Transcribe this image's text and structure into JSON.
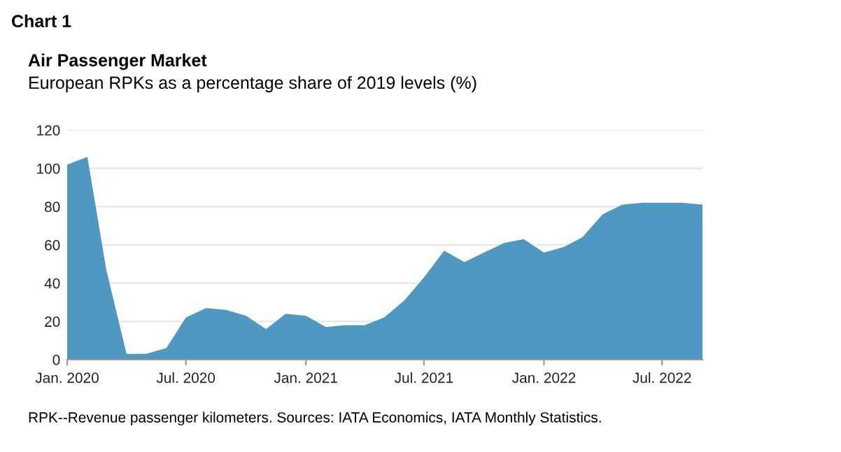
{
  "chart_data": {
    "type": "area",
    "title": "Air Passenger Market",
    "subtitle": "European RPKs as a percentage share of 2019 levels (%)",
    "annotations": [
      "Chart 1",
      "RPK--Revenue passenger kilometers. Sources: IATA Economics, IATA Monthly Statistics."
    ],
    "x": [
      "2020-01",
      "2020-02",
      "2020-03",
      "2020-04",
      "2020-05",
      "2020-06",
      "2020-07",
      "2020-08",
      "2020-09",
      "2020-10",
      "2020-11",
      "2020-12",
      "2021-01",
      "2021-02",
      "2021-03",
      "2021-04",
      "2021-05",
      "2021-06",
      "2021-07",
      "2021-08",
      "2021-09",
      "2021-10",
      "2021-11",
      "2021-12",
      "2022-01",
      "2022-02",
      "2022-03",
      "2022-04",
      "2022-05",
      "2022-06",
      "2022-07",
      "2022-08",
      "2022-09"
    ],
    "series": [
      {
        "color": "#4f98c2",
        "values": [
          102,
          106,
          47,
          3,
          3,
          6,
          22,
          27,
          26,
          23,
          16,
          24,
          23,
          17,
          18,
          18,
          22,
          31,
          43,
          57,
          51,
          56,
          61,
          63,
          56,
          59,
          64,
          76,
          81,
          82,
          82,
          82,
          81
        ]
      }
    ],
    "xlim": [
      "2020-01",
      "2022-09"
    ],
    "xticks": [
      {
        "value": "2020-01",
        "label": "Jan. 2020"
      },
      {
        "value": "2020-07",
        "label": "Jul. 2020"
      },
      {
        "value": "2021-01",
        "label": "Jan. 2021"
      },
      {
        "value": "2021-07",
        "label": "Jul. 2021"
      },
      {
        "value": "2022-01",
        "label": "Jan. 2022"
      },
      {
        "value": "2022-07",
        "label": "Jul. 2022"
      }
    ],
    "ylim": [
      0,
      120
    ],
    "yticks": [
      0,
      20,
      40,
      60,
      80,
      100,
      120
    ],
    "grid": "y"
  }
}
